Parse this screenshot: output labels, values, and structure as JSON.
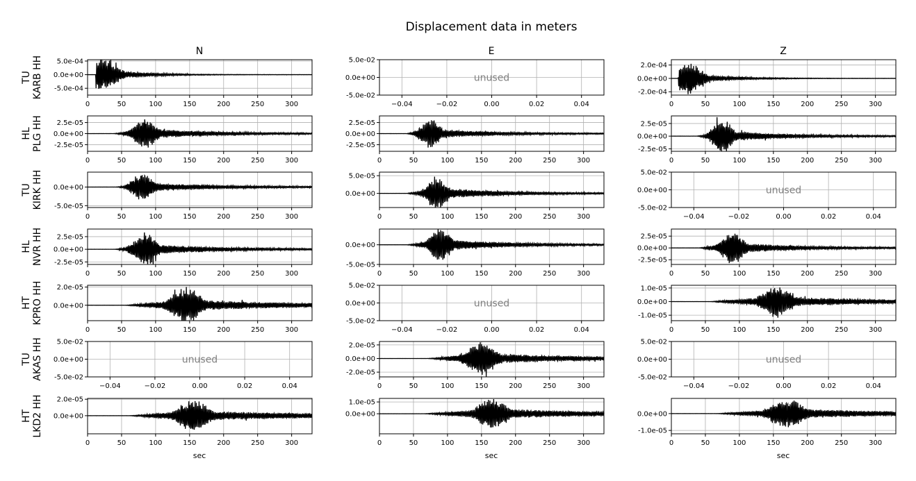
{
  "figure": {
    "title": "Displacement data in meters",
    "columns": [
      "N",
      "E",
      "Z"
    ],
    "rows": [
      {
        "network": "TU",
        "station": "KARB HH"
      },
      {
        "network": "HL",
        "station": "PLG HH"
      },
      {
        "network": "TU",
        "station": "KIRK HH"
      },
      {
        "network": "HL",
        "station": "NVR HH"
      },
      {
        "network": "HT",
        "station": "KPRO HH"
      },
      {
        "network": "TU",
        "station": "AKAS HH"
      },
      {
        "network": "HT",
        "station": "LKD2 HH"
      }
    ],
    "xlabel": "sec",
    "unused_text": "unused"
  },
  "chart_data": {
    "type": "line",
    "title": "Displacement data in meters",
    "xlabel": "sec",
    "xlim": [
      0,
      330
    ],
    "xticks": [
      "0",
      "50",
      "100",
      "150",
      "200",
      "250",
      "300"
    ],
    "unused_xticks": [
      "−0.04",
      "−0.02",
      "0.00",
      "0.02",
      "0.04"
    ],
    "unused_yticks": [
      "5.0e-02",
      "0.0e+00",
      "-5.0e-02"
    ],
    "line_color": "#000000",
    "grid": true,
    "panels": [
      {
        "row": 0,
        "col": 0,
        "unused": false,
        "ylim": [
          -0.00075,
          0.00055
        ],
        "yticks": [
          "5.0e-04",
          "0.0e+00",
          "-5.0e-04"
        ],
        "ytick_values": [
          0.0005,
          0,
          -0.0005
        ],
        "onset": 12,
        "peak_t": 22,
        "peak_amp": 0.0006,
        "env_width": 60,
        "decay": 60,
        "tail": 0.02,
        "seed": 11
      },
      {
        "row": 0,
        "col": 1,
        "unused": true
      },
      {
        "row": 0,
        "col": 2,
        "unused": false,
        "ylim": [
          -0.00025,
          0.00028
        ],
        "yticks": [
          "2.0e-04",
          "0.0e+00",
          "-2.0e-04"
        ],
        "ytick_values": [
          0.0002,
          0,
          -0.0002
        ],
        "onset": 10,
        "peak_t": 22,
        "peak_amp": 0.00025,
        "env_width": 60,
        "decay": 60,
        "tail": 0.02,
        "seed": 12
      },
      {
        "row": 1,
        "col": 0,
        "unused": false,
        "ylim": [
          -4e-05,
          4e-05
        ],
        "yticks": [
          "2.5e-05",
          "0.0e+00",
          "-2.5e-05"
        ],
        "ytick_values": [
          2.5e-05,
          0,
          -2.5e-05
        ],
        "onset": 38,
        "peak_t": 85,
        "peak_amp": 3.5e-05,
        "env_width": 45,
        "decay": 90,
        "tail": 0.1,
        "seed": 21
      },
      {
        "row": 1,
        "col": 1,
        "unused": false,
        "ylim": [
          -4e-05,
          4e-05
        ],
        "yticks": [
          "2.5e-05",
          "0.0e+00",
          "-2.5e-05"
        ],
        "ytick_values": [
          2.5e-05,
          0,
          -2.5e-05
        ],
        "onset": 40,
        "peak_t": 75,
        "peak_amp": 3.4e-05,
        "env_width": 40,
        "decay": 80,
        "tail": 0.1,
        "seed": 22
      },
      {
        "row": 1,
        "col": 2,
        "unused": false,
        "ylim": [
          -3e-05,
          4e-05
        ],
        "yticks": [
          "2.5e-05",
          "0.0e+00",
          "-2.5e-05"
        ],
        "ytick_values": [
          2.5e-05,
          0,
          -2.5e-05
        ],
        "onset": 38,
        "peak_t": 75,
        "peak_amp": 3.5e-05,
        "env_width": 40,
        "decay": 80,
        "tail": 0.1,
        "seed": 23
      },
      {
        "row": 2,
        "col": 0,
        "unused": false,
        "ylim": [
          -5.5e-05,
          4e-05
        ],
        "yticks": [
          "0.0e+00",
          "-5.0e-05"
        ],
        "ytick_values": [
          0,
          -5e-05
        ],
        "onset": 42,
        "peak_t": 80,
        "peak_amp": 4e-05,
        "env_width": 40,
        "decay": 90,
        "tail": 0.12,
        "seed": 31
      },
      {
        "row": 2,
        "col": 1,
        "unused": false,
        "ylim": [
          -4e-05,
          6e-05
        ],
        "yticks": [
          "5.0e-05",
          "0.0e+00"
        ],
        "ytick_values": [
          5e-05,
          0
        ],
        "onset": 40,
        "peak_t": 85,
        "peak_amp": 5e-05,
        "env_width": 40,
        "decay": 90,
        "tail": 0.08,
        "seed": 32
      },
      {
        "row": 2,
        "col": 2,
        "unused": true
      },
      {
        "row": 3,
        "col": 0,
        "unused": false,
        "ylim": [
          -3e-05,
          4e-05
        ],
        "yticks": [
          "2.5e-05",
          "0.0e+00",
          "-2.5e-05"
        ],
        "ytick_values": [
          2.5e-05,
          0,
          -2.5e-05
        ],
        "onset": 40,
        "peak_t": 85,
        "peak_amp": 3.5e-05,
        "env_width": 45,
        "decay": 90,
        "tail": 0.1,
        "seed": 41
      },
      {
        "row": 3,
        "col": 1,
        "unused": false,
        "ylim": [
          -5e-05,
          4e-05
        ],
        "yticks": [
          "0.0e+00",
          "-5.0e-05"
        ],
        "ytick_values": [
          0,
          -5e-05
        ],
        "onset": 40,
        "peak_t": 90,
        "peak_amp": 4.5e-05,
        "env_width": 40,
        "decay": 90,
        "tail": 0.08,
        "seed": 42
      },
      {
        "row": 3,
        "col": 2,
        "unused": false,
        "ylim": [
          -3.5e-05,
          4e-05
        ],
        "yticks": [
          "2.5e-05",
          "0.0e+00",
          "-2.5e-05"
        ],
        "ytick_values": [
          2.5e-05,
          0,
          -2.5e-05
        ],
        "onset": 40,
        "peak_t": 90,
        "peak_amp": 3.5e-05,
        "env_width": 45,
        "decay": 90,
        "tail": 0.1,
        "seed": 43
      },
      {
        "row": 4,
        "col": 0,
        "unused": false,
        "ylim": [
          -1.7e-05,
          2.2e-05
        ],
        "yticks": [
          "2.0e-05",
          "0.0e+00"
        ],
        "ytick_values": [
          2e-05,
          0
        ],
        "onset": 55,
        "peak_t": 145,
        "peak_amp": 2e-05,
        "env_width": 60,
        "decay": 120,
        "tail": 0.18,
        "seed": 51
      },
      {
        "row": 4,
        "col": 1,
        "unused": true
      },
      {
        "row": 4,
        "col": 2,
        "unused": false,
        "ylim": [
          -1.4e-05,
          1.2e-05
        ],
        "yticks": [
          "1.0e-05",
          "0.0e+00",
          "-1.0e-05"
        ],
        "ytick_values": [
          1e-05,
          0,
          -1e-05
        ],
        "onset": 55,
        "peak_t": 155,
        "peak_amp": 1.2e-05,
        "env_width": 60,
        "decay": 120,
        "tail": 0.18,
        "seed": 52
      },
      {
        "row": 5,
        "col": 0,
        "unused": true
      },
      {
        "row": 5,
        "col": 1,
        "unused": false,
        "ylim": [
          -2.7e-05,
          2.5e-05
        ],
        "yticks": [
          "2.0e-05",
          "0.0e+00",
          "-2.0e-05"
        ],
        "ytick_values": [
          2e-05,
          0,
          -2e-05
        ],
        "onset": 70,
        "peak_t": 150,
        "peak_amp": 2.5e-05,
        "env_width": 60,
        "decay": 120,
        "tail": 0.15,
        "seed": 61
      },
      {
        "row": 5,
        "col": 2,
        "unused": true
      },
      {
        "row": 6,
        "col": 0,
        "unused": false,
        "ylim": [
          -2.2e-05,
          2.1e-05
        ],
        "yticks": [
          "2.0e-05",
          "0.0e+00"
        ],
        "ytick_values": [
          2e-05,
          0
        ],
        "onset": 60,
        "peak_t": 155,
        "peak_amp": 2e-05,
        "env_width": 60,
        "decay": 140,
        "tail": 0.2,
        "seed": 71
      },
      {
        "row": 6,
        "col": 1,
        "unused": false,
        "ylim": [
          -1.7e-05,
          1.3e-05
        ],
        "yticks": [
          "1.0e-05",
          "0.0e+00"
        ],
        "ytick_values": [
          1e-05,
          0
        ],
        "onset": 65,
        "peak_t": 165,
        "peak_amp": 1.3e-05,
        "env_width": 60,
        "decay": 140,
        "tail": 0.2,
        "seed": 72
      },
      {
        "row": 6,
        "col": 2,
        "unused": false,
        "ylim": [
          -1.2e-05,
          9e-06
        ],
        "yticks": [
          "0.0e+00",
          "-1.0e-05"
        ],
        "ytick_values": [
          0,
          -1e-05
        ],
        "onset": 65,
        "peak_t": 170,
        "peak_amp": 9e-06,
        "env_width": 70,
        "decay": 140,
        "tail": 0.2,
        "seed": 73
      }
    ]
  }
}
